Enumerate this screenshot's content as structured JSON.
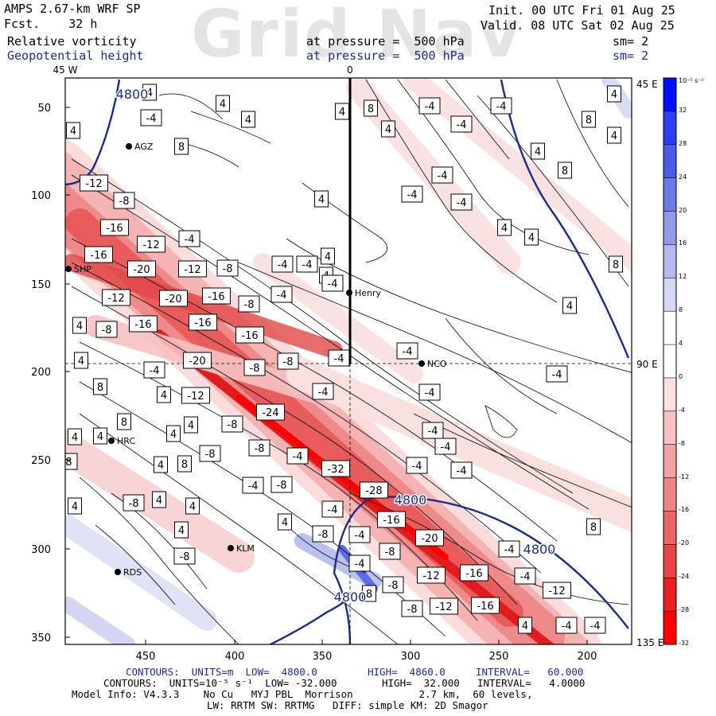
{
  "header": {
    "watermark": "Grid Nav",
    "model": "AMPS 2.67-km WRF SP",
    "forecast": "Fcst.    32 h",
    "field1": "Relative vorticity",
    "field2": "Geopotential height",
    "pressure1": "at pressure =  500 hPa",
    "pressure2": "at pressure =  500 hPa",
    "init": "Init. 00 UTC Fri 01 Aug 25",
    "valid": "Valid. 08 UTC Sat 02 Aug 25",
    "sm1": "sm= 2",
    "sm2": "sm= 2"
  },
  "axes": {
    "x_ticks": [
      "450",
      "400",
      "350",
      "300",
      "250",
      "200"
    ],
    "y_ticks": [
      "50",
      "100",
      "150",
      "200",
      "250",
      "300",
      "350"
    ],
    "top_labels": [
      "45 W",
      "0"
    ],
    "right_labels": [
      "45 E",
      "90 E",
      "135 E"
    ]
  },
  "stations": [
    {
      "name": "AGZ"
    },
    {
      "name": "SHP"
    },
    {
      "name": "Henry"
    },
    {
      "name": "NCO"
    },
    {
      "name": "HRC"
    },
    {
      "name": "KLM"
    },
    {
      "name": "RDS"
    }
  ],
  "height_labels": [
    "4800",
    "4800",
    "4800",
    "4800"
  ],
  "vorticity_labels": [
    "4",
    "4",
    "4",
    "4",
    "-4",
    "4",
    "8",
    "-4",
    "-4",
    "8",
    "4",
    "4",
    "-4",
    "4",
    "8",
    "4",
    "8",
    "-12",
    "-8",
    "-4",
    "4",
    "-4",
    "-4",
    "4",
    "4",
    "-16",
    "-12",
    "-4",
    "4",
    "-16",
    "-20",
    "-12",
    "-8",
    "-4",
    "-4",
    "4",
    "8",
    "-12",
    "-20",
    "-16",
    "-8",
    "-4",
    "-4",
    "4",
    "-8",
    "-16",
    "-16",
    "-16",
    "-4",
    "-4",
    "4",
    "4",
    "-20",
    "-8",
    "-8",
    "-4",
    "-4",
    "4",
    "8",
    "4",
    "-12",
    "-4",
    "-4",
    "8",
    "-24",
    "-8",
    "-4",
    "4",
    "4",
    "4",
    "-8",
    "-8",
    "-8",
    "-4",
    "-4",
    "4",
    "8",
    "-4",
    "-8",
    "-32",
    "-4",
    "-4",
    "4",
    "4",
    "-8",
    "-28",
    "-4",
    "4",
    "-8",
    "-8",
    "-16",
    "-4",
    "4",
    "-8",
    "-20",
    "-8",
    "-4",
    "4",
    "-12",
    "-16",
    "-4",
    "8",
    "-8",
    "-12",
    "-16",
    "-4",
    "4",
    "-12",
    "-4",
    "-4",
    "8"
  ],
  "colorbar": {
    "unit": "10⁻⁵ s⁻¹",
    "labels": [
      "32",
      "28",
      "24",
      "20",
      "16",
      "12",
      "8",
      "4",
      "0",
      "-4",
      "-8",
      "-12",
      "-16",
      "-20",
      "-24",
      "-28",
      "-32"
    ],
    "colors": [
      "#0010ff",
      "#2a3ef2",
      "#4a5ce8",
      "#6d7be6",
      "#909ae8",
      "#b3b9ee",
      "#d5d8f5",
      "#ffffff",
      "#ffffff",
      "#fbe0e0",
      "#f7c2c2",
      "#f2a3a3",
      "#ee8484",
      "#ea6565",
      "#e64646",
      "#ea2020",
      "#ff0000"
    ]
  },
  "footer": {
    "line1a": "CONTOURS:  UNITS=m  LOW=  4800.0",
    "line1b": "HIGH=  4860.0",
    "line1c": "INTERVAL=   60.000",
    "line2a": "CONTOURS:  UNITS=10⁻⁵ s⁻¹  LOW= -32.000",
    "line2b": "HIGH=  32.000",
    "line2c": "INTERVAL=   4.0000",
    "line3": "Model Info: V4.3.3    No Cu   MYJ PBL  Morrison           2.7 km,  60 levels,",
    "line4": "LW: RRTM SW: RRTMG   DIFF: simple KM: 2D Smagor"
  }
}
